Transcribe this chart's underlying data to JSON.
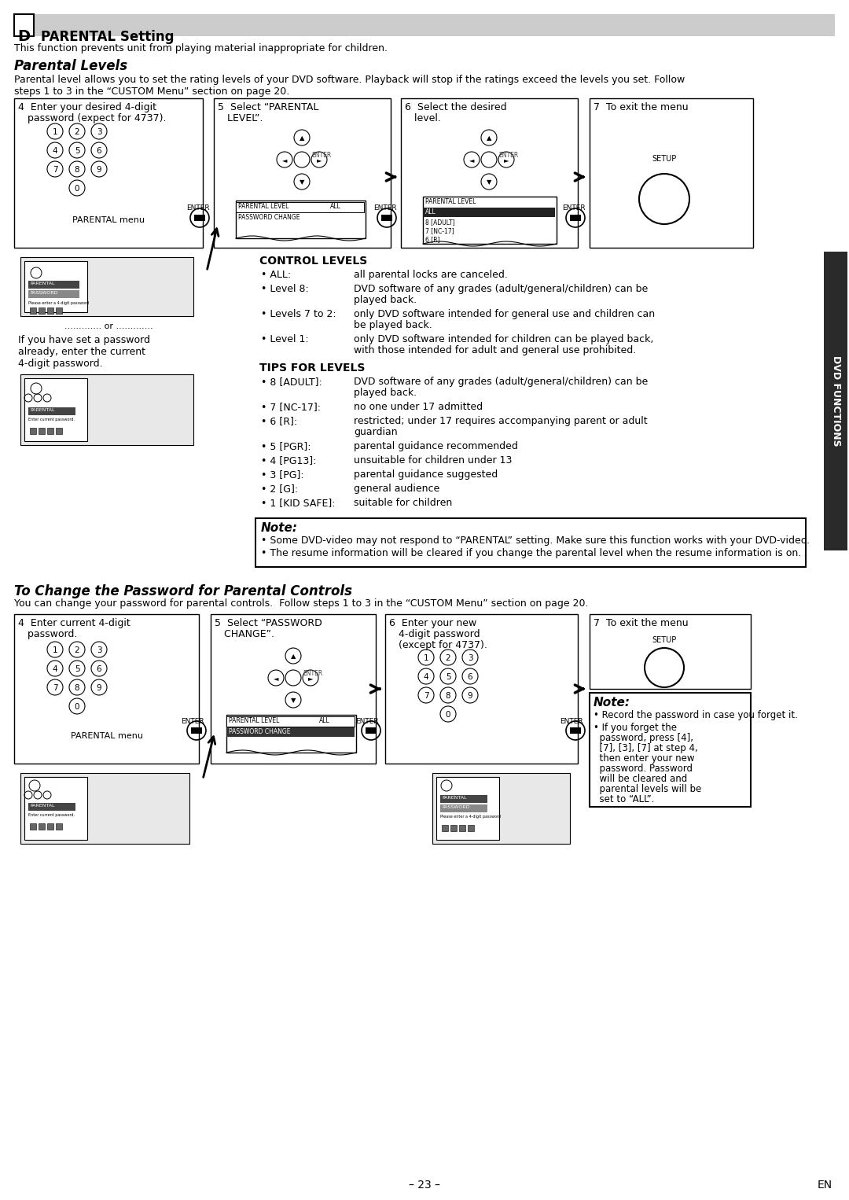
{
  "page_bg": "#ffffff",
  "header_bg": "#cccccc",
  "header_letter": "D",
  "header_title": "PARENTAL Setting",
  "intro_text": "This function prevents unit from playing material inappropriate for children.",
  "section1_title": "Parental Levels",
  "section1_desc1": "Parental level allows you to set the rating levels of your DVD software. Playback will stop if the ratings exceed the levels you set. Follow",
  "section1_desc2": "steps 1 to 3 in the “CUSTOM Menu” section on page 20.",
  "step4_line1": "4  Enter your desired 4-digit",
  "step4_line2": "   password (expect for 4737).",
  "step5_line1": "5  Select “PARENTAL",
  "step5_line2": "   LEVEL”.",
  "step6_line1": "6  Select the desired",
  "step6_line2": "   level.",
  "step7_line1": "7  To exit the menu",
  "setup_label": "SETUP",
  "enter_label": "ENTER",
  "parental_menu_label": "PARENTAL menu",
  "or_text": "............. or .............",
  "alt_pass_line1": "If you have set a password",
  "alt_pass_line2": "already, enter the current",
  "alt_pass_line3": "4-digit password.",
  "parental_level_text": "PARENTAL LEVEL",
  "all_text": "ALL",
  "password_change_text": "PASSWORD CHANGE",
  "screen5_lines": [
    "PARENTAL LEVEL    ALL",
    "PASSWORD CHANGE"
  ],
  "screen6_lines": [
    "PARENTAL LEVEL",
    "ALL",
    "8 [ADULT]",
    "7 [NC-17]",
    "6 [R]"
  ],
  "control_levels_title": "CONTROL LEVELS",
  "cl_items": [
    [
      "ALL:",
      "all parental locks are canceled."
    ],
    [
      "Level 8:",
      "DVD software of any grades (adult/general/children) can be played back."
    ],
    [
      "Levels 7 to 2:",
      "only DVD software intended for general use and children can be played back."
    ],
    [
      "Level 1:",
      "only DVD software intended for children can be played back, with those intended for adult and general use prohibited."
    ]
  ],
  "tips_title": "TIPS FOR LEVELS",
  "tips_items": [
    [
      "8 [ADULT]:",
      "DVD software of any grades (adult/general/children) can be played back."
    ],
    [
      "7 [NC-17]:",
      "no one under 17 admitted"
    ],
    [
      "6 [R]:",
      "restricted; under 17 requires accompanying parent or adult guardian"
    ],
    [
      "5 [PGR]:",
      "parental guidance recommended"
    ],
    [
      "4 [PG13]:",
      "unsuitable for children under 13"
    ],
    [
      "3 [PG]:",
      "parental guidance suggested"
    ],
    [
      "2 [G]:",
      "general audience"
    ],
    [
      "1 [KID SAFE]:",
      "suitable for children"
    ]
  ],
  "note1_title": "Note:",
  "note1_line1": "• Some DVD-video may not respond to “PARENTAL” setting. Make sure this function works with your DVD-video.",
  "note1_line2": "• The resume information will be cleared if you change the parental level when the resume information is on.",
  "section2_title": "To Change the Password for Parental Controls",
  "section2_desc": "You can change your password for parental controls.  Follow steps 1 to 3 in the “CUSTOM Menu” section on page 20.",
  "step4b_line1": "4  Enter current 4-digit",
  "step4b_line2": "   password.",
  "step5b_line1": "5  Select “PASSWORD",
  "step5b_line2": "   CHANGE”.",
  "step6b_line1": "6  Enter your new",
  "step6b_line2": "   4-digit password",
  "step6b_line3": "   (except for 4737).",
  "step7b_line1": "7  To exit the menu",
  "note2_title": "Note:",
  "note2_line1": "• Record the password in case you forget it.",
  "note2_line2": "• If you forget the password, press [4], [7], [3], [7] at step 4, then enter your new password. Password will be cleared and parental levels will be set to “ALL”.",
  "dvd_functions_label": "DVD FUNCTIONS",
  "page_number": "– 23 –",
  "en_label": "EN"
}
